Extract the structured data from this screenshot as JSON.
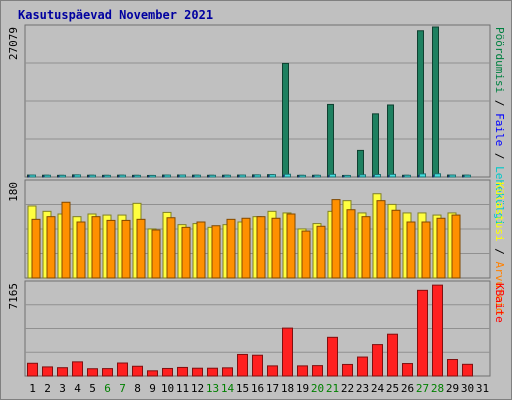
{
  "chart_data": {
    "type": "bar",
    "title": "Kasutuspäevad November 2021",
    "categories": [
      "1",
      "2",
      "3",
      "4",
      "5",
      "6",
      "7",
      "8",
      "9",
      "10",
      "11",
      "12",
      "13",
      "14",
      "15",
      "16",
      "17",
      "18",
      "19",
      "20",
      "21",
      "22",
      "23",
      "24",
      "25",
      "26",
      "27",
      "28",
      "29",
      "30",
      "31"
    ],
    "weekend_days": [
      "6",
      "7",
      "13",
      "14",
      "20",
      "21",
      "27",
      "28"
    ],
    "panels": [
      {
        "id": "panel_hits",
        "ymax_label": "27079",
        "ylim": [
          0,
          27079
        ],
        "right_labels": [
          {
            "text": "Pöördumisi",
            "color": "#008040"
          },
          {
            "text": " / ",
            "color": "#000000"
          },
          {
            "text": "Faile",
            "color": "#0000ff"
          },
          {
            "text": " / ",
            "color": "#000000"
          },
          {
            "text": "Lehekülgi",
            "color": "#00c8c8"
          }
        ],
        "series": [
          {
            "name": "Pöördumisi",
            "color": "#1e8060",
            "values": [
              350,
              320,
              300,
              380,
              320,
              300,
              330,
              300,
              280,
              350,
              360,
              330,
              310,
              320,
              350,
              380,
              420,
              20500,
              300,
              310,
              13100,
              280,
              4800,
              11400,
              13000,
              310,
              26400,
              27079,
              350,
              330,
              null
            ]
          },
          {
            "name": "Faile",
            "color": "#3060ff",
            "values": [
              200,
              180,
              170,
              220,
              180,
              170,
              190,
              170,
              160,
              200,
              210,
              190,
              180,
              180,
              200,
              220,
              240,
              300,
              170,
              180,
              230,
              160,
              200,
              220,
              240,
              180,
              280,
              300,
              200,
              190,
              null
            ]
          },
          {
            "name": "Lehekülgi",
            "color": "#40e0e0",
            "values": [
              350,
              320,
              300,
              380,
              320,
              300,
              330,
              300,
              280,
              350,
              360,
              330,
              310,
              320,
              350,
              380,
              420,
              500,
              300,
              310,
              480,
              280,
              400,
              450,
              480,
              310,
              560,
              580,
              350,
              330,
              null
            ]
          }
        ]
      },
      {
        "id": "panel_visits",
        "ymax_label": "180",
        "ylim": [
          0,
          180
        ],
        "right_labels": [
          {
            "text": "Külastusi",
            "color": "#ffff00"
          },
          {
            "text": " / ",
            "color": "#000000"
          },
          {
            "text": "Arvuteid",
            "color": "#ff8000"
          }
        ],
        "series": [
          {
            "name": "Külastusi",
            "color": "#ffff40",
            "values": [
              135,
              125,
              120,
              115,
              120,
              118,
              118,
              140,
              92,
              123,
              100,
              102,
              95,
              100,
              105,
              115,
              125,
              122,
              92,
              102,
              125,
              145,
              122,
              158,
              138,
              122,
              122,
              118,
              122,
              0,
              null
            ]
          },
          {
            "name": "Arvuteid",
            "color": "#ff9000",
            "values": [
              110,
              115,
              142,
              105,
              115,
              108,
              108,
              110,
              90,
              113,
              95,
              105,
              98,
              110,
              112,
              115,
              112,
              120,
              88,
              97,
              147,
              128,
              115,
              145,
              127,
              105,
              105,
              112,
              118,
              0,
              null
            ]
          }
        ]
      },
      {
        "id": "panel_bytes",
        "ymax_label": "7165",
        "ylim": [
          0,
          7165
        ],
        "right_labels": [
          {
            "text": "KBaite",
            "color": "#ff0000"
          }
        ],
        "series": [
          {
            "name": "KBaite",
            "color": "#ff2020",
            "values": [
              980,
              700,
              640,
              1090,
              560,
              570,
              1000,
              750,
              400,
              580,
              660,
              600,
              600,
              630,
              1660,
              1600,
              780,
              3690,
              780,
              800,
              2980,
              890,
              1460,
              2420,
              3220,
              960,
              6600,
              7000,
              1270,
              900,
              null
            ]
          }
        ]
      }
    ]
  }
}
